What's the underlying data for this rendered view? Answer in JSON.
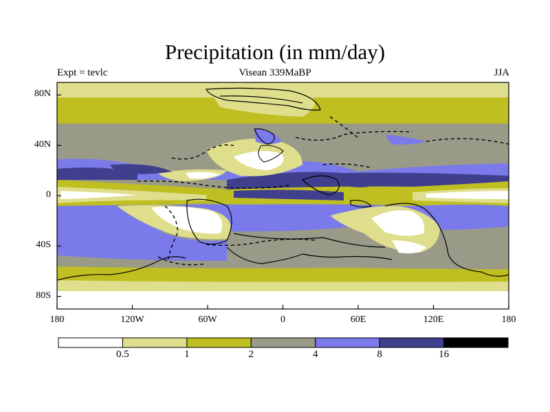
{
  "title": "Precipitation (in mm/day)",
  "experiment": "Expt = tevlc",
  "period": "Visean 339MaBP",
  "season": "JJA",
  "lat_labels": [
    "80N",
    "40N",
    "0",
    "40S",
    "80S"
  ],
  "lat_values": [
    80,
    40,
    0,
    -40,
    -80
  ],
  "lon_labels": [
    "180",
    "120W",
    "60W",
    "0",
    "60E",
    "120E",
    "180"
  ],
  "lon_values": [
    -180,
    -120,
    -60,
    0,
    60,
    120,
    180
  ],
  "colorbar": {
    "levels": [
      "0.5",
      "1",
      "2",
      "4",
      "8",
      "16"
    ],
    "colors": [
      "#ffffff",
      "#dede8c",
      "#bfbf21",
      "#9a9a88",
      "#7a7aea",
      "#3f3f8e",
      "#000000"
    ]
  },
  "chart_data": {
    "type": "heatmap",
    "title": "Precipitation (in mm/day)",
    "units": "mm/day",
    "projection": "cylindrical equidistant",
    "lon_range": [
      -180,
      180
    ],
    "lat_range": [
      -90,
      90
    ],
    "contour_levels": [
      0.5,
      1,
      2,
      4,
      8,
      16
    ],
    "bands_by_latitude": [
      {
        "lat": [
          80,
          90
        ],
        "range": "0.5-1"
      },
      {
        "lat": [
          68,
          80
        ],
        "range": "1-2"
      },
      {
        "lat": [
          45,
          68
        ],
        "range": "2-4"
      },
      {
        "lat": [
          14,
          30
        ],
        "range": "4-8"
      },
      {
        "lat": [
          -8,
          8
        ],
        "range": "<0.5"
      },
      {
        "lat": [
          -30,
          -10
        ],
        "range": "4-8"
      },
      {
        "lat": [
          -60,
          -40
        ],
        "range": "2-4"
      },
      {
        "lat": [
          -78,
          -64
        ],
        "range": "1-2"
      },
      {
        "lat": [
          -90,
          -80
        ],
        "range": "<0.5"
      }
    ]
  }
}
